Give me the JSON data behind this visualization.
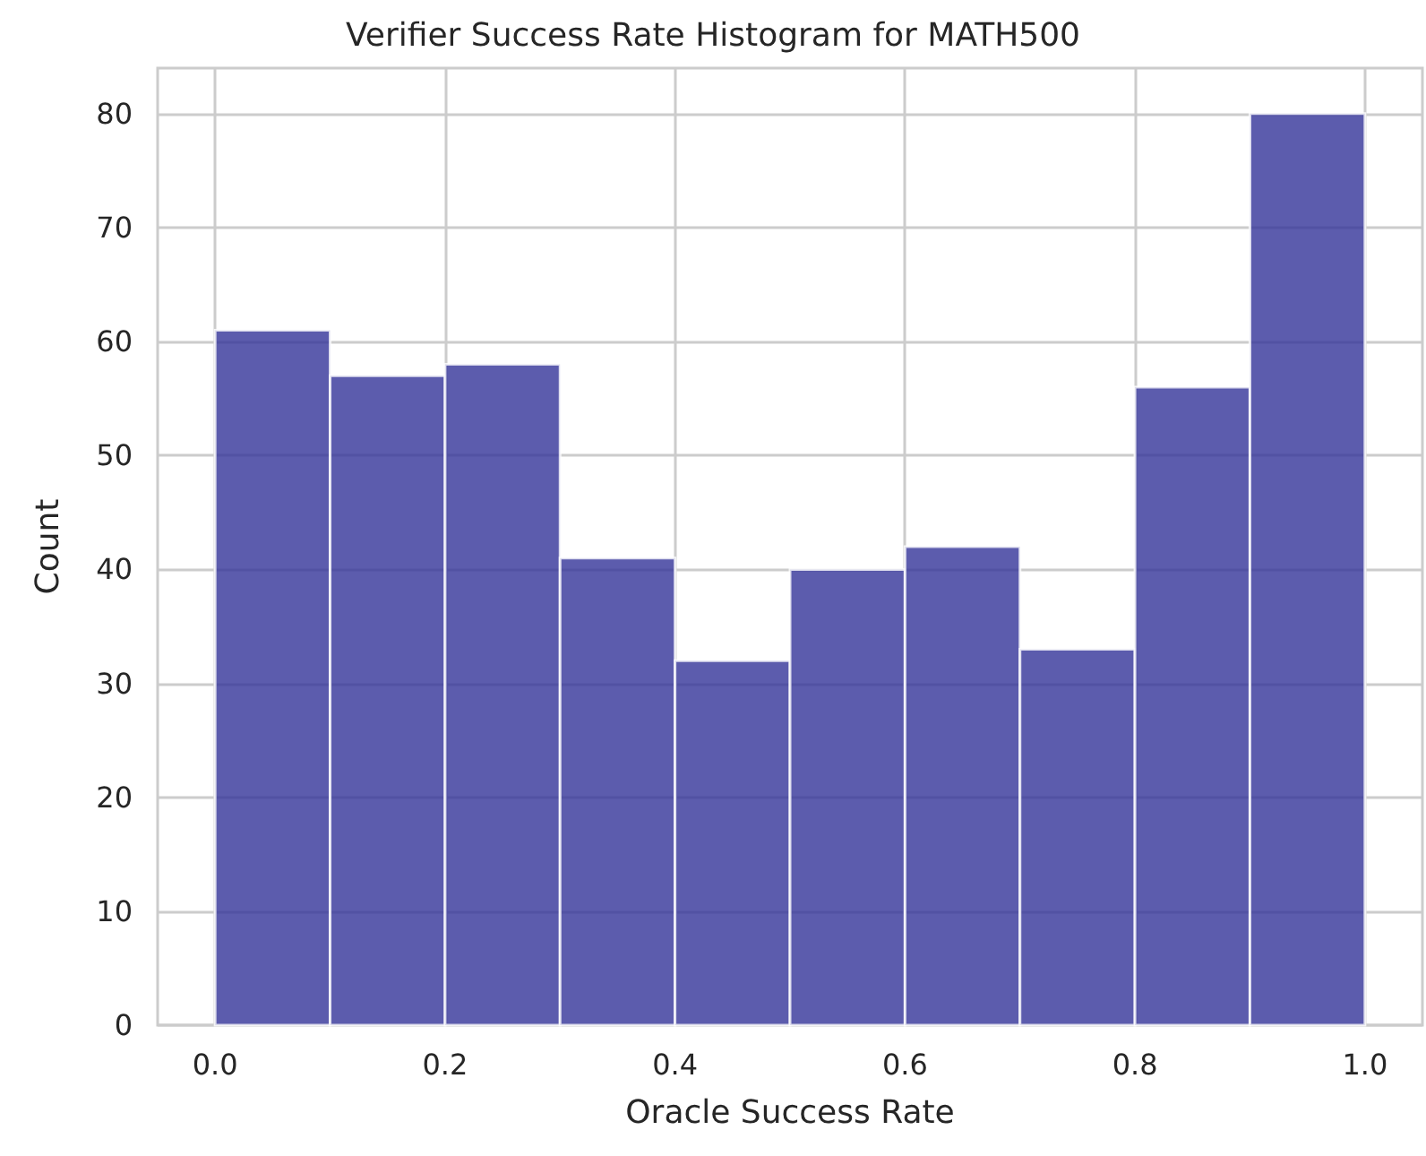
{
  "chart_data": {
    "type": "histogram",
    "title": "Verifier Success Rate Histogram for MATH500",
    "xlabel": "Oracle Success Rate",
    "ylabel": "Count",
    "bins": [
      0,
      0.1,
      0.2,
      0.3,
      0.4,
      0.5,
      0.6,
      0.7,
      0.8,
      0.9,
      1.0
    ],
    "values": [
      61,
      57,
      58,
      41,
      32,
      40,
      42,
      33,
      56,
      80
    ],
    "color": "#333399",
    "xlim": [
      -0.05,
      1.05
    ],
    "xticks": [
      {
        "value": 0,
        "label": "0.0"
      },
      {
        "value": 0.2,
        "label": "0.2"
      },
      {
        "value": 0.4,
        "label": "0.4"
      },
      {
        "value": 0.6,
        "label": "0.6"
      },
      {
        "value": 0.8,
        "label": "0.8"
      },
      {
        "value": 1,
        "label": "1.0"
      }
    ],
    "ylim": [
      0,
      84
    ],
    "yticks": [
      0,
      10,
      20,
      30,
      40,
      50,
      60,
      70,
      80
    ],
    "grid": true
  }
}
